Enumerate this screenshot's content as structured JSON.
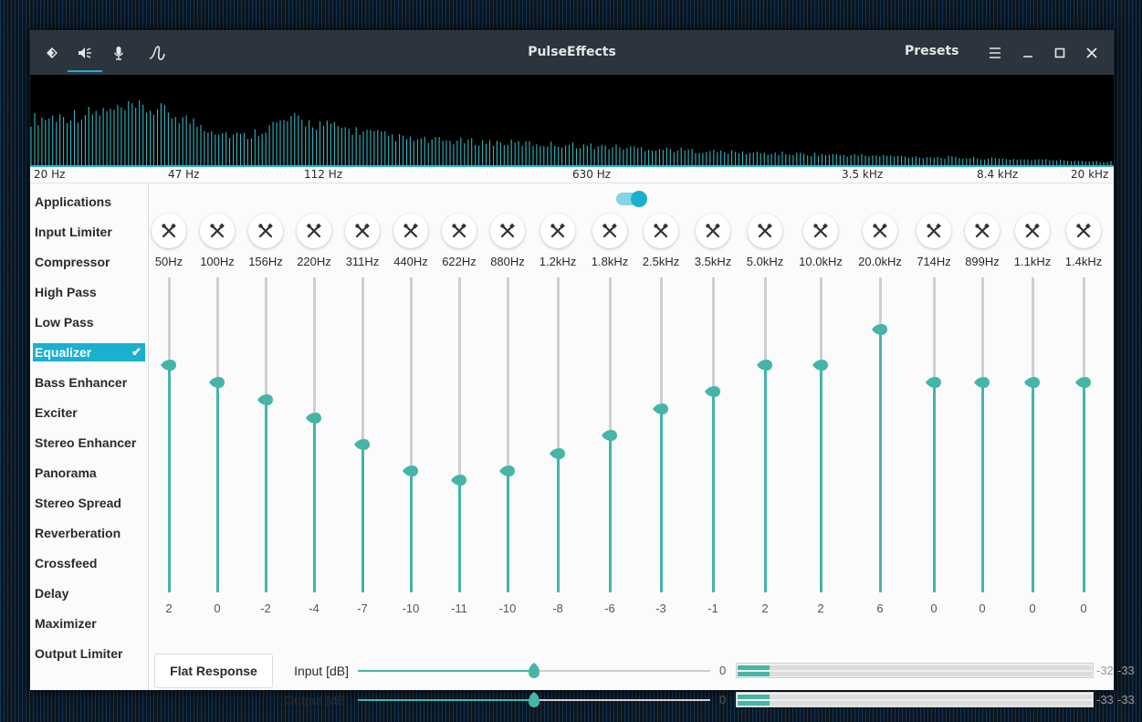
{
  "window": {
    "title": "PulseEffects",
    "presets_label": "Presets",
    "tabs": [
      {
        "icon": "speaker-output-icon"
      },
      {
        "icon": "volume-icon",
        "active": true
      },
      {
        "icon": "microphone-icon"
      },
      {
        "icon": "spectrum-icon"
      }
    ],
    "accent_color": "#1ab0d0",
    "slider_color": "#45b5a8"
  },
  "spectrum": {
    "labels": [
      "20 Hz",
      "47 Hz",
      "112 Hz",
      "630 Hz",
      "3.5 kHz",
      "8.4 kHz",
      "20 kHz"
    ]
  },
  "sidebar": {
    "items": [
      {
        "label": "Applications"
      },
      {
        "label": "Input Limiter"
      },
      {
        "label": "Compressor"
      },
      {
        "label": "High Pass"
      },
      {
        "label": "Low Pass"
      },
      {
        "label": "Equalizer",
        "active": true
      },
      {
        "label": "Bass Enhancer"
      },
      {
        "label": "Exciter"
      },
      {
        "label": "Stereo Enhancer"
      },
      {
        "label": "Panorama"
      },
      {
        "label": "Stereo Spread"
      },
      {
        "label": "Reverberation"
      },
      {
        "label": "Crossfeed"
      },
      {
        "label": "Delay"
      },
      {
        "label": "Maximizer"
      },
      {
        "label": "Output Limiter"
      }
    ]
  },
  "equalizer": {
    "enabled": true,
    "bands": [
      {
        "freq": "50Hz",
        "gain": 2
      },
      {
        "freq": "100Hz",
        "gain": 0
      },
      {
        "freq": "156Hz",
        "gain": -2
      },
      {
        "freq": "220Hz",
        "gain": -4
      },
      {
        "freq": "311Hz",
        "gain": -7
      },
      {
        "freq": "440Hz",
        "gain": -10
      },
      {
        "freq": "622Hz",
        "gain": -11
      },
      {
        "freq": "880Hz",
        "gain": -10
      },
      {
        "freq": "1.2kHz",
        "gain": -8
      },
      {
        "freq": "1.8kHz",
        "gain": -6
      },
      {
        "freq": "2.5kHz",
        "gain": -3
      },
      {
        "freq": "3.5kHz",
        "gain": -1
      },
      {
        "freq": "5.0kHz",
        "gain": 2
      },
      {
        "freq": "10.0kHz",
        "gain": 2
      },
      {
        "freq": "20.0kHz",
        "gain": 6
      },
      {
        "freq": "714Hz",
        "gain": 0
      },
      {
        "freq": "899Hz",
        "gain": 0
      },
      {
        "freq": "1.1kHz",
        "gain": 0
      },
      {
        "freq": "1.4kHz",
        "gain": 0
      }
    ],
    "flat_response_label": "Flat Response"
  },
  "gains": {
    "input": {
      "label": "Input [dB]",
      "value": "0",
      "level": 0.5,
      "meter_left": "-32",
      "meter_right": "-33",
      "meter_fill": 0.09
    },
    "output": {
      "label": "Output [dB]",
      "value": "0",
      "level": 0.5,
      "meter_left": "-33",
      "meter_right": "-33",
      "meter_fill": 0.09
    }
  }
}
